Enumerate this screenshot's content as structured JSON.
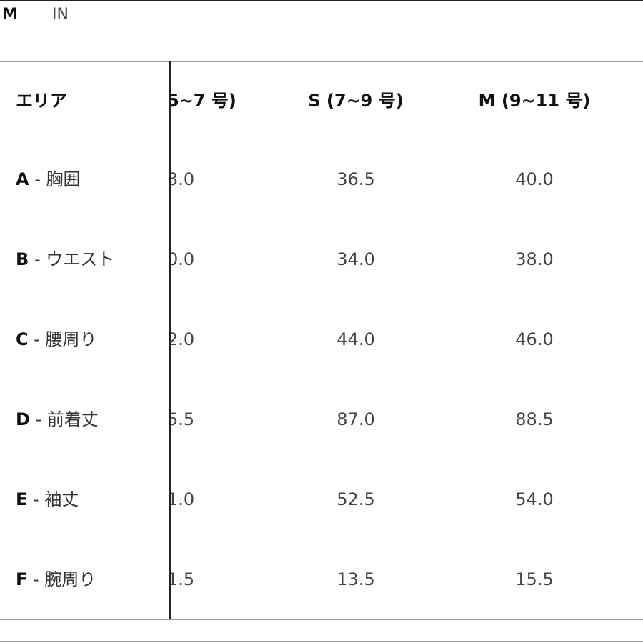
{
  "units": {
    "active": "CM",
    "active_visible": "M",
    "other": "IN"
  },
  "table": {
    "headers": [
      "エリア",
      "5~7 号)",
      "S (7~9 号)",
      "M (9~11 号)"
    ],
    "rows": [
      {
        "letter": "A",
        "name": "- 胸囲",
        "c1": "3.0",
        "c2": "36.5",
        "c3": "40.0"
      },
      {
        "letter": "B",
        "name": "- ウエスト",
        "c1": "0.0",
        "c2": "34.0",
        "c3": "38.0"
      },
      {
        "letter": "C",
        "name": "- 腰周り",
        "c1": "2.0",
        "c2": "44.0",
        "c3": "46.0"
      },
      {
        "letter": "D",
        "name": "- 前着丈",
        "c1": "5.5",
        "c2": "87.0",
        "c3": "88.5"
      },
      {
        "letter": "E",
        "name": "- 袖丈",
        "c1": "1.0",
        "c2": "52.5",
        "c3": "54.0"
      },
      {
        "letter": "F",
        "name": "- 腕周り",
        "c1": "1.5",
        "c2": "13.5",
        "c3": "15.5"
      }
    ]
  }
}
